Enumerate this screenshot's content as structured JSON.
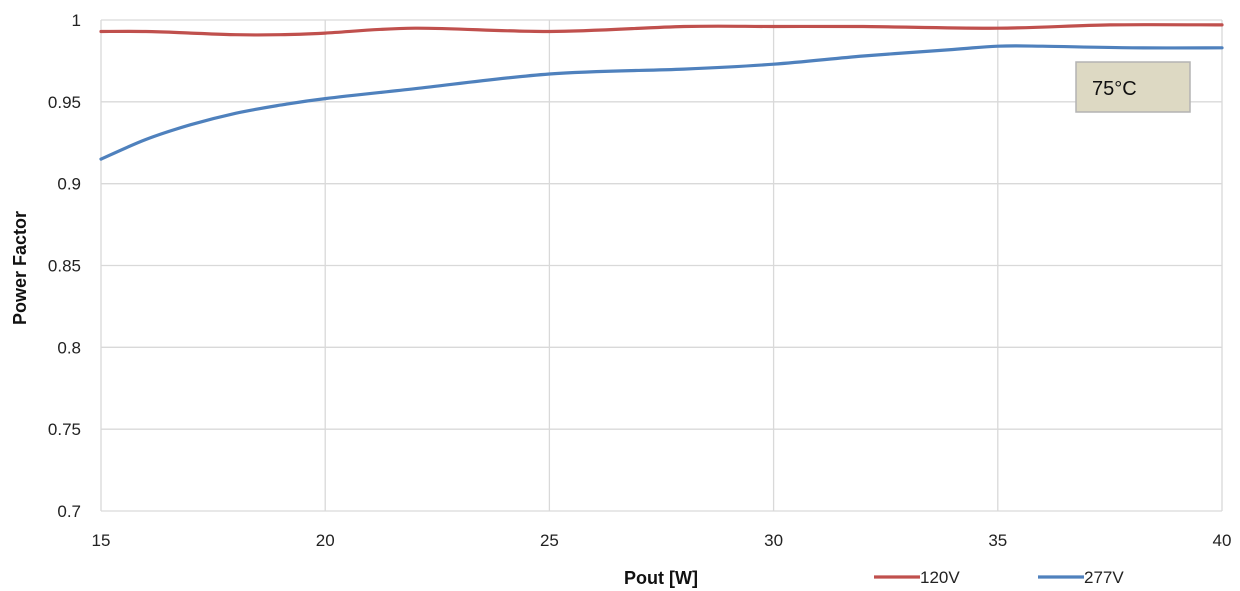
{
  "chart_data": {
    "type": "line",
    "title": "",
    "xlabel": "Pout [W]",
    "ylabel": "Power Factor",
    "xlim": [
      15,
      40
    ],
    "ylim": [
      0.7,
      1.0
    ],
    "xticks": [
      "15",
      "20",
      "25",
      "30",
      "35",
      "40"
    ],
    "yticks": [
      "0.7",
      "0.75",
      "0.8",
      "0.85",
      "0.9",
      "0.95",
      "1"
    ],
    "grid": true,
    "legend_position": "bottom-right",
    "annotation": "75°C",
    "series": [
      {
        "name": "120V",
        "color": "#c0504d",
        "x": [
          15,
          16,
          17,
          18,
          19,
          20,
          22,
          25,
          28,
          30,
          32,
          35,
          37.5,
          40
        ],
        "y": [
          0.993,
          0.993,
          0.992,
          0.991,
          0.991,
          0.992,
          0.995,
          0.993,
          0.996,
          0.996,
          0.996,
          0.995,
          0.997,
          0.997
        ]
      },
      {
        "name": "277V",
        "color": "#4f81bd",
        "x": [
          15,
          16,
          17,
          18,
          19,
          20,
          22,
          25,
          28,
          30,
          32,
          34,
          35,
          36,
          38,
          40
        ],
        "y": [
          0.915,
          0.927,
          0.936,
          0.943,
          0.948,
          0.952,
          0.958,
          0.967,
          0.97,
          0.973,
          0.978,
          0.982,
          0.984,
          0.984,
          0.983,
          0.983
        ]
      }
    ]
  }
}
